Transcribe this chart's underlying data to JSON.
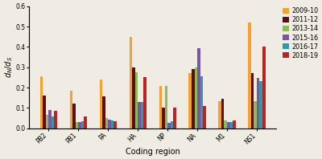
{
  "categories": [
    "PB2",
    "PB1",
    "PA",
    "HA",
    "NP",
    "NA",
    "M1",
    "NS1"
  ],
  "series": {
    "2009-10": [
      0.255,
      0.185,
      0.24,
      0.45,
      0.207,
      0.27,
      0.135,
      0.52
    ],
    "2011-12": [
      0.16,
      0.12,
      0.155,
      0.3,
      0.1,
      0.29,
      0.145,
      0.27
    ],
    "2013-14": [
      0.065,
      0.03,
      0.05,
      0.275,
      0.21,
      0.3,
      0.04,
      0.135
    ],
    "2015-16": [
      0.09,
      0.03,
      0.042,
      0.13,
      0.028,
      0.395,
      0.03,
      0.248
    ],
    "2016-17": [
      0.06,
      0.035,
      0.038,
      0.13,
      0.035,
      0.255,
      0.03,
      0.23
    ],
    "2018-19": [
      0.085,
      0.06,
      0.035,
      0.25,
      0.1,
      0.11,
      0.04,
      0.4
    ]
  },
  "colors": {
    "2009-10": "#F5A030",
    "2011-12": "#5A1010",
    "2013-14": "#8BBB55",
    "2015-16": "#7755AA",
    "2016-17": "#3399AA",
    "2018-19": "#BB2222"
  },
  "ylabel": "d_N/d_S",
  "xlabel": "Coding region",
  "ylim": [
    0.0,
    0.6
  ],
  "yticks": [
    0.0,
    0.1,
    0.2,
    0.3,
    0.4,
    0.5,
    0.6
  ],
  "background_color": "#f0ebe3",
  "figsize": [
    4.0,
    1.98
  ],
  "dpi": 100,
  "bar_width": 0.095,
  "legend_labels": [
    "2009-10",
    "2011-12",
    "2013-14",
    "2015-16",
    "2016-17",
    "2018-19"
  ]
}
